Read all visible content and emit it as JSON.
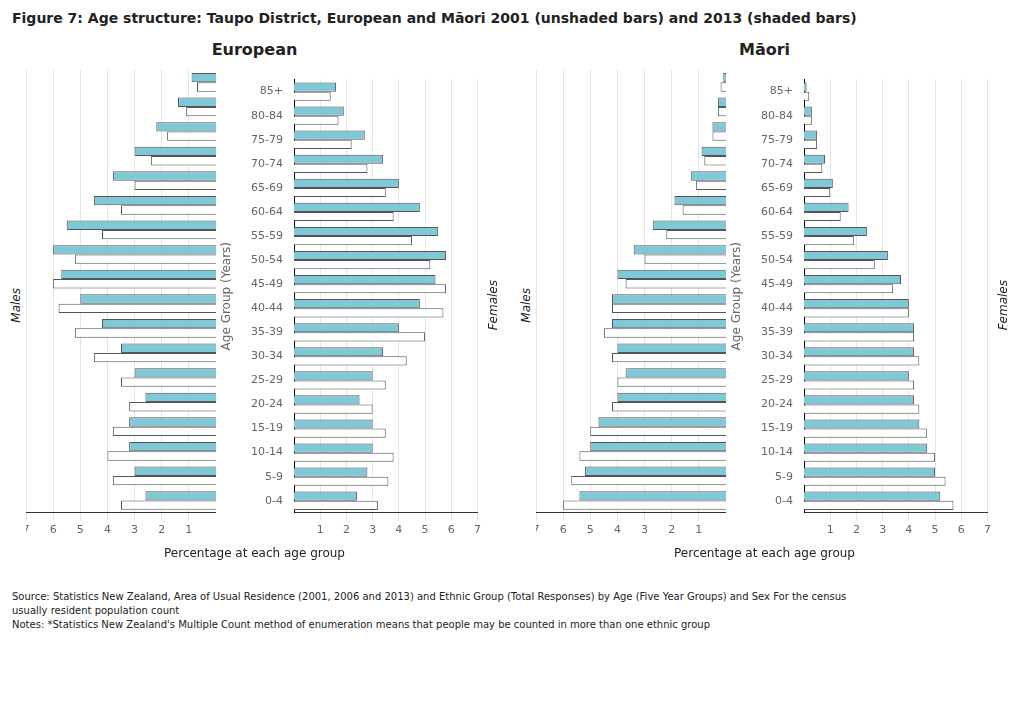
{
  "title": "Figure 7: Age structure: Taupo District, European and Māori 2001 (unshaded bars) and 2013 (shaded bars)",
  "source": "Source: Statistics New Zealand, Area of Usual Residence (2001, 2006 and 2013) and Ethnic Group (Total Responses) by Age (Five Year Groups) and Sex For the census\nusually resident population count\nNotes: *Statistics New Zealand's Multiple Count method of enumeration means that people may be counted in more than one ethnic group",
  "chart_data": [
    {
      "type": "bar",
      "orientation": "horizontal",
      "title": "European",
      "xlabel": "Percentage at each age group",
      "ylabel": "Age Group (Years)",
      "grid": true,
      "categories": [
        "0-4",
        "5-9",
        "10-14",
        "15-19",
        "20-24",
        "25-29",
        "30-34",
        "35-39",
        "40-44",
        "45-49",
        "50-54",
        "55-59",
        "60-64",
        "65-69",
        "70-74",
        "75-79",
        "80-84",
        "85+"
      ],
      "panels": [
        {
          "label": "Males",
          "xlim": [
            7,
            0
          ],
          "xticks": [
            1,
            2,
            3,
            4,
            5,
            6,
            7
          ],
          "series": [
            {
              "color": "#7EC8D8",
              "values": [
                2.6,
                3.0,
                3.2,
                3.2,
                2.6,
                3.0,
                3.5,
                4.2,
                5.0,
                5.7,
                6.0,
                5.5,
                4.5,
                3.8,
                3.0,
                2.2,
                1.4,
                0.9
              ]
            },
            {
              "color": "white",
              "values": [
                3.5,
                3.8,
                4.0,
                3.8,
                3.2,
                3.5,
                4.5,
                5.2,
                5.8,
                6.0,
                5.2,
                4.2,
                3.5,
                3.0,
                2.4,
                1.8,
                1.1,
                0.7
              ]
            }
          ]
        },
        {
          "label": "Females",
          "xlim": [
            0,
            7
          ],
          "xticks": [
            1,
            2,
            3,
            4,
            5,
            6,
            7
          ],
          "series": [
            {
              "color": "#7EC8D8",
              "values": [
                2.4,
                2.8,
                3.0,
                3.0,
                2.5,
                3.0,
                3.4,
                4.0,
                4.8,
                5.4,
                5.8,
                5.5,
                4.8,
                4.0,
                3.4,
                2.7,
                1.9,
                1.6
              ]
            },
            {
              "color": "white",
              "values": [
                3.2,
                3.6,
                3.8,
                3.5,
                3.0,
                3.5,
                4.3,
                5.0,
                5.7,
                5.8,
                5.2,
                4.5,
                3.8,
                3.5,
                2.8,
                2.2,
                1.7,
                1.4
              ]
            }
          ]
        }
      ]
    },
    {
      "type": "bar",
      "orientation": "horizontal",
      "title": "Māori",
      "xlabel": "Percentage at each age group",
      "ylabel": "Age Group (Years)",
      "grid": true,
      "categories": [
        "0-4",
        "5-9",
        "10-14",
        "15-19",
        "20-24",
        "25-29",
        "30-34",
        "35-39",
        "40-44",
        "45-49",
        "50-54",
        "55-59",
        "60-64",
        "65-69",
        "70-74",
        "75-79",
        "80-84",
        "85+"
      ],
      "panels": [
        {
          "label": "Males",
          "xlim": [
            7,
            0
          ],
          "xticks": [
            1,
            2,
            3,
            4,
            5,
            6,
            7
          ],
          "series": [
            {
              "color": "#7EC8D8",
              "values": [
                5.4,
                5.2,
                5.0,
                4.7,
                4.0,
                3.7,
                4.0,
                4.2,
                4.2,
                4.0,
                3.4,
                2.7,
                1.9,
                1.3,
                0.9,
                0.5,
                0.3,
                0.1
              ]
            },
            {
              "color": "white",
              "values": [
                6.0,
                5.7,
                5.4,
                5.0,
                4.2,
                4.0,
                4.2,
                4.5,
                4.2,
                3.7,
                3.0,
                2.2,
                1.6,
                1.1,
                0.8,
                0.5,
                0.3,
                0.2
              ]
            }
          ]
        },
        {
          "label": "Females",
          "xlim": [
            0,
            7
          ],
          "xticks": [
            1,
            2,
            3,
            4,
            5,
            6,
            7
          ],
          "series": [
            {
              "color": "#7EC8D8",
              "values": [
                5.2,
                5.0,
                4.7,
                4.4,
                4.2,
                4.0,
                4.2,
                4.2,
                4.0,
                3.7,
                3.2,
                2.4,
                1.7,
                1.1,
                0.8,
                0.5,
                0.3,
                0.1
              ]
            },
            {
              "color": "white",
              "values": [
                5.7,
                5.4,
                5.0,
                4.7,
                4.4,
                4.2,
                4.4,
                4.2,
                4.0,
                3.4,
                2.7,
                1.9,
                1.4,
                1.0,
                0.7,
                0.5,
                0.3,
                0.2
              ]
            }
          ]
        }
      ]
    }
  ]
}
